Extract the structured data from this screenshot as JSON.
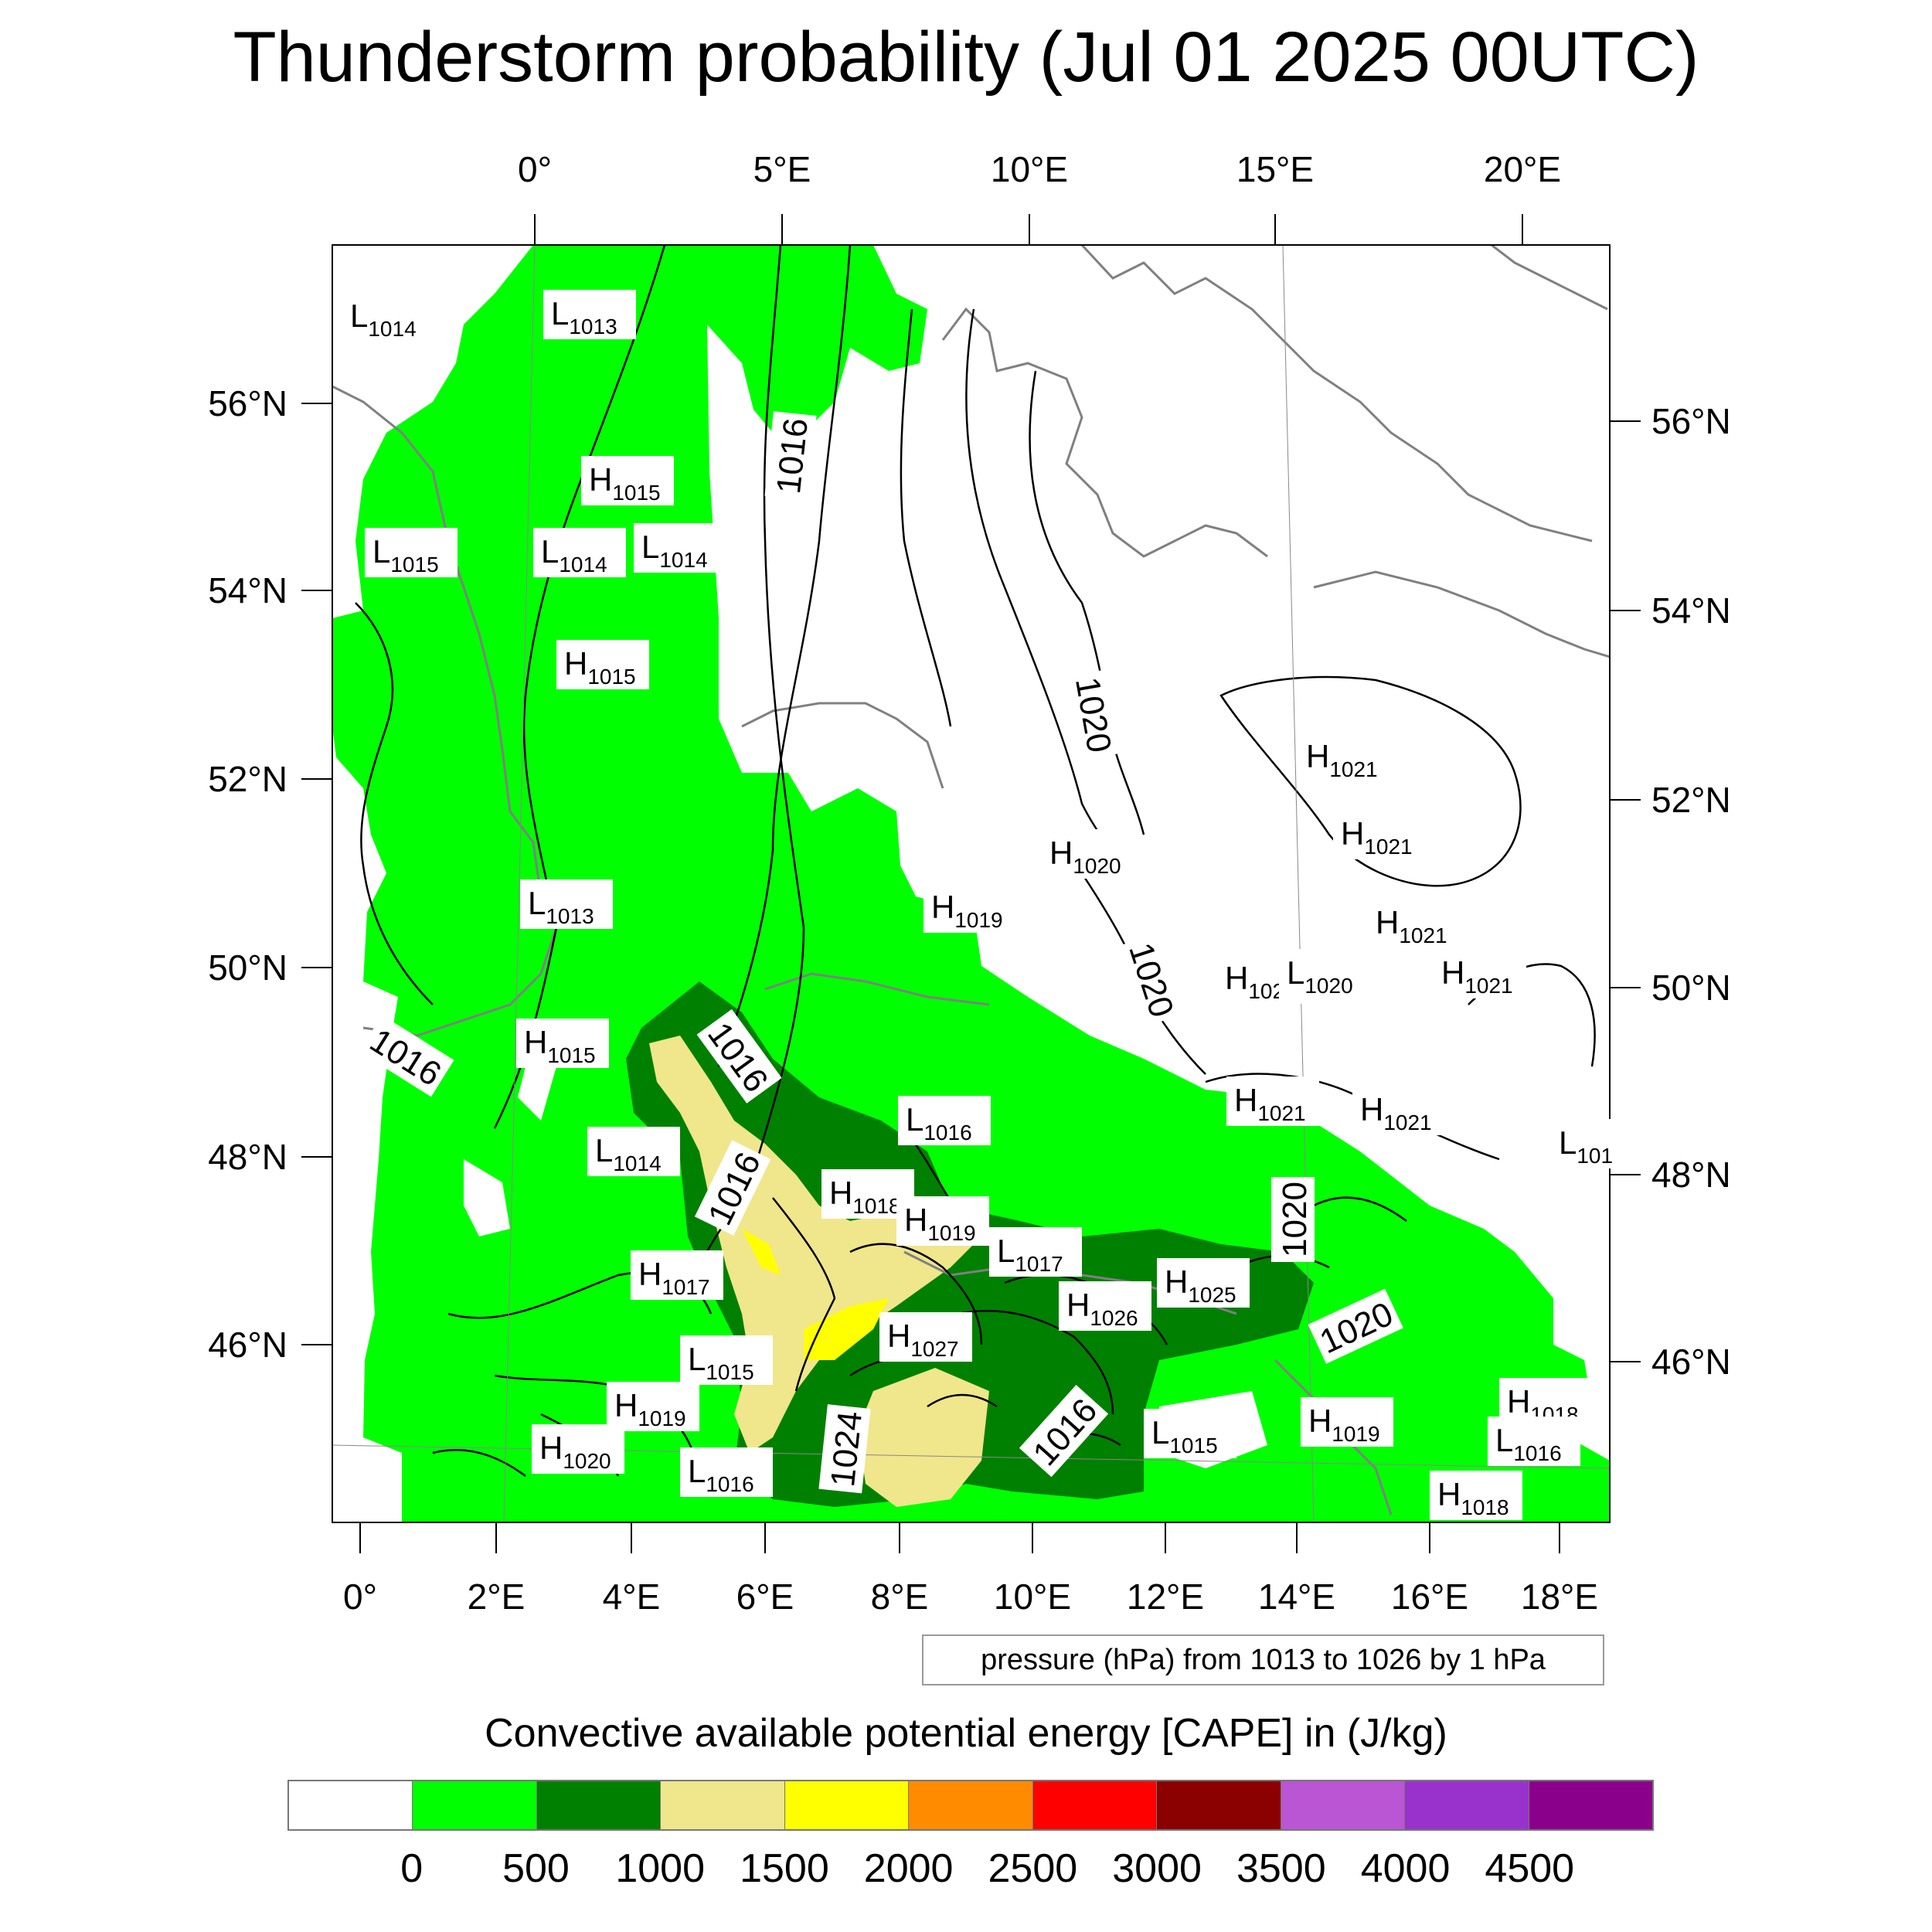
{
  "title": "Thunderstorm probability (Jul 01 2025 00UTC)",
  "top_lon_labels": [
    "0°",
    "5°E",
    "10°E",
    "15°E",
    "20°E"
  ],
  "bottom_lon_labels": [
    "0°",
    "2°E",
    "4°E",
    "6°E",
    "8°E",
    "10°E",
    "12°E",
    "14°E",
    "16°E",
    "18°E"
  ],
  "left_lat_labels": [
    "56°N",
    "54°N",
    "52°N",
    "50°N",
    "48°N",
    "46°N"
  ],
  "right_lat_labels": [
    "56°N",
    "54°N",
    "52°N",
    "50°N",
    "48°N",
    "46°N"
  ],
  "pressure_note": "pressure (hPa) from 1013 to 1026 by 1 hPa",
  "colorbar": {
    "title": "Convective available potential energy [CAPE] in (J/kg)",
    "colors": [
      "#ffffff",
      "#00ff00",
      "#008000",
      "#f0e68c",
      "#ffff00",
      "#ff8c00",
      "#ff0000",
      "#8b0000",
      "#ba55d3",
      "#9932cc",
      "#8b008b"
    ],
    "tick_labels": [
      "0",
      "500",
      "1000",
      "1500",
      "2000",
      "2500",
      "3000",
      "3500",
      "4000",
      "4500"
    ]
  },
  "pressure_centers": [
    {
      "type": "L",
      "value": "1014"
    },
    {
      "type": "L",
      "value": "1013"
    },
    {
      "type": "H",
      "value": "1015"
    },
    {
      "type": "L",
      "value": "1015"
    },
    {
      "type": "L",
      "value": "1014"
    },
    {
      "type": "L",
      "value": "1014"
    },
    {
      "type": "H",
      "value": "1015"
    },
    {
      "type": "H",
      "value": "1021"
    },
    {
      "type": "H",
      "value": "1021"
    },
    {
      "type": "H",
      "value": "1020"
    },
    {
      "type": "H",
      "value": "1019"
    },
    {
      "type": "L",
      "value": "1013"
    },
    {
      "type": "H",
      "value": "1021"
    },
    {
      "type": "H",
      "value": "1021"
    },
    {
      "type": "L",
      "value": "1020"
    },
    {
      "type": "H",
      "value": "1021"
    },
    {
      "type": "H",
      "value": "1015"
    },
    {
      "type": "H",
      "value": "1021"
    },
    {
      "type": "H",
      "value": "1021"
    },
    {
      "type": "L",
      "value": "1016"
    },
    {
      "type": "L",
      "value": "1014"
    },
    {
      "type": "H",
      "value": "1018"
    },
    {
      "type": "H",
      "value": "1019"
    },
    {
      "type": "L",
      "value": "1017"
    },
    {
      "type": "L",
      "value": "101"
    },
    {
      "type": "H",
      "value": "1017"
    },
    {
      "type": "H",
      "value": "1026"
    },
    {
      "type": "H",
      "value": "1025"
    },
    {
      "type": "H",
      "value": "1027"
    },
    {
      "type": "L",
      "value": "1015"
    },
    {
      "type": "H",
      "value": "1019"
    },
    {
      "type": "H",
      "value": "1020"
    },
    {
      "type": "L",
      "value": "1016"
    },
    {
      "type": "L",
      "value": "1015"
    },
    {
      "type": "H",
      "value": "1019"
    },
    {
      "type": "H",
      "value": "1018"
    },
    {
      "type": "L",
      "value": "1016"
    },
    {
      "type": "H",
      "value": "1018"
    }
  ],
  "contour_labels": [
    "1016",
    "1020",
    "1016",
    "1016",
    "1020",
    "1016",
    "1024",
    "1016",
    "1020",
    "1020"
  ]
}
